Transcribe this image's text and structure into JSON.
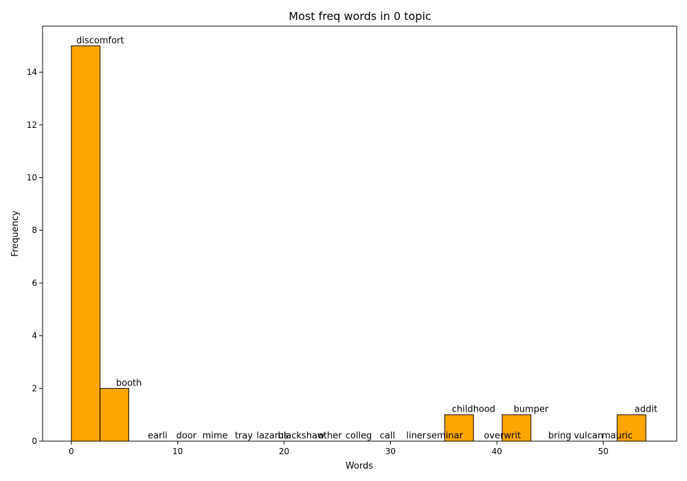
{
  "chart_data": {
    "type": "bar",
    "title": "Most freq words in 0 topic",
    "xlabel": "Words",
    "ylabel": "Frequency",
    "xlim": [
      -2.7,
      56.9
    ],
    "ylim": [
      0,
      15.75
    ],
    "xticks": [
      0,
      10,
      20,
      30,
      40,
      50
    ],
    "yticks": [
      0,
      2,
      4,
      6,
      8,
      10,
      12,
      14
    ],
    "bar_color": "#ffa500",
    "edge_color": "#000000",
    "grid": false,
    "legend": "none",
    "bars": [
      {
        "x_start": 0.0,
        "x_end": 2.7,
        "value": 15
      },
      {
        "x_start": 2.7,
        "x_end": 5.4,
        "value": 2
      },
      {
        "x_start": 35.1,
        "x_end": 37.8,
        "value": 1
      },
      {
        "x_start": 40.5,
        "x_end": 43.2,
        "value": 1
      },
      {
        "x_start": 51.3,
        "x_end": 54.0,
        "value": 1
      }
    ],
    "labels": [
      {
        "text": "discomfort",
        "x": 0,
        "y": 15
      },
      {
        "text": "booth",
        "x": 2.7,
        "y": 2
      },
      {
        "text": "earli",
        "x": 5.4,
        "y": 0
      },
      {
        "text": "door",
        "x": 8.1,
        "y": 0
      },
      {
        "text": "mime",
        "x": 10.8,
        "y": 0
      },
      {
        "text": "tray",
        "x": 13.5,
        "y": 0
      },
      {
        "text": "lazarus",
        "x": 16.2,
        "y": 0
      },
      {
        "text": "blackshaw",
        "x": 18.9,
        "y": 0
      },
      {
        "text": "other",
        "x": 21.6,
        "y": 0
      },
      {
        "text": "colleg",
        "x": 24.3,
        "y": 0
      },
      {
        "text": "call",
        "x": 27.0,
        "y": 0
      },
      {
        "text": "liner",
        "x": 29.7,
        "y": 0
      },
      {
        "text": "seminar",
        "x": 32.4,
        "y": 0
      },
      {
        "text": "childhood",
        "x": 35.1,
        "y": 1
      },
      {
        "text": "overwrit",
        "x": 37.8,
        "y": 0
      },
      {
        "text": "bumper",
        "x": 40.5,
        "y": 1
      },
      {
        "text": "bring",
        "x": 43.2,
        "y": 0
      },
      {
        "text": "vulcan",
        "x": 45.9,
        "y": 0
      },
      {
        "text": "mauric",
        "x": 48.6,
        "y": 0
      },
      {
        "text": "addit",
        "x": 51.3,
        "y": 1
      }
    ]
  }
}
